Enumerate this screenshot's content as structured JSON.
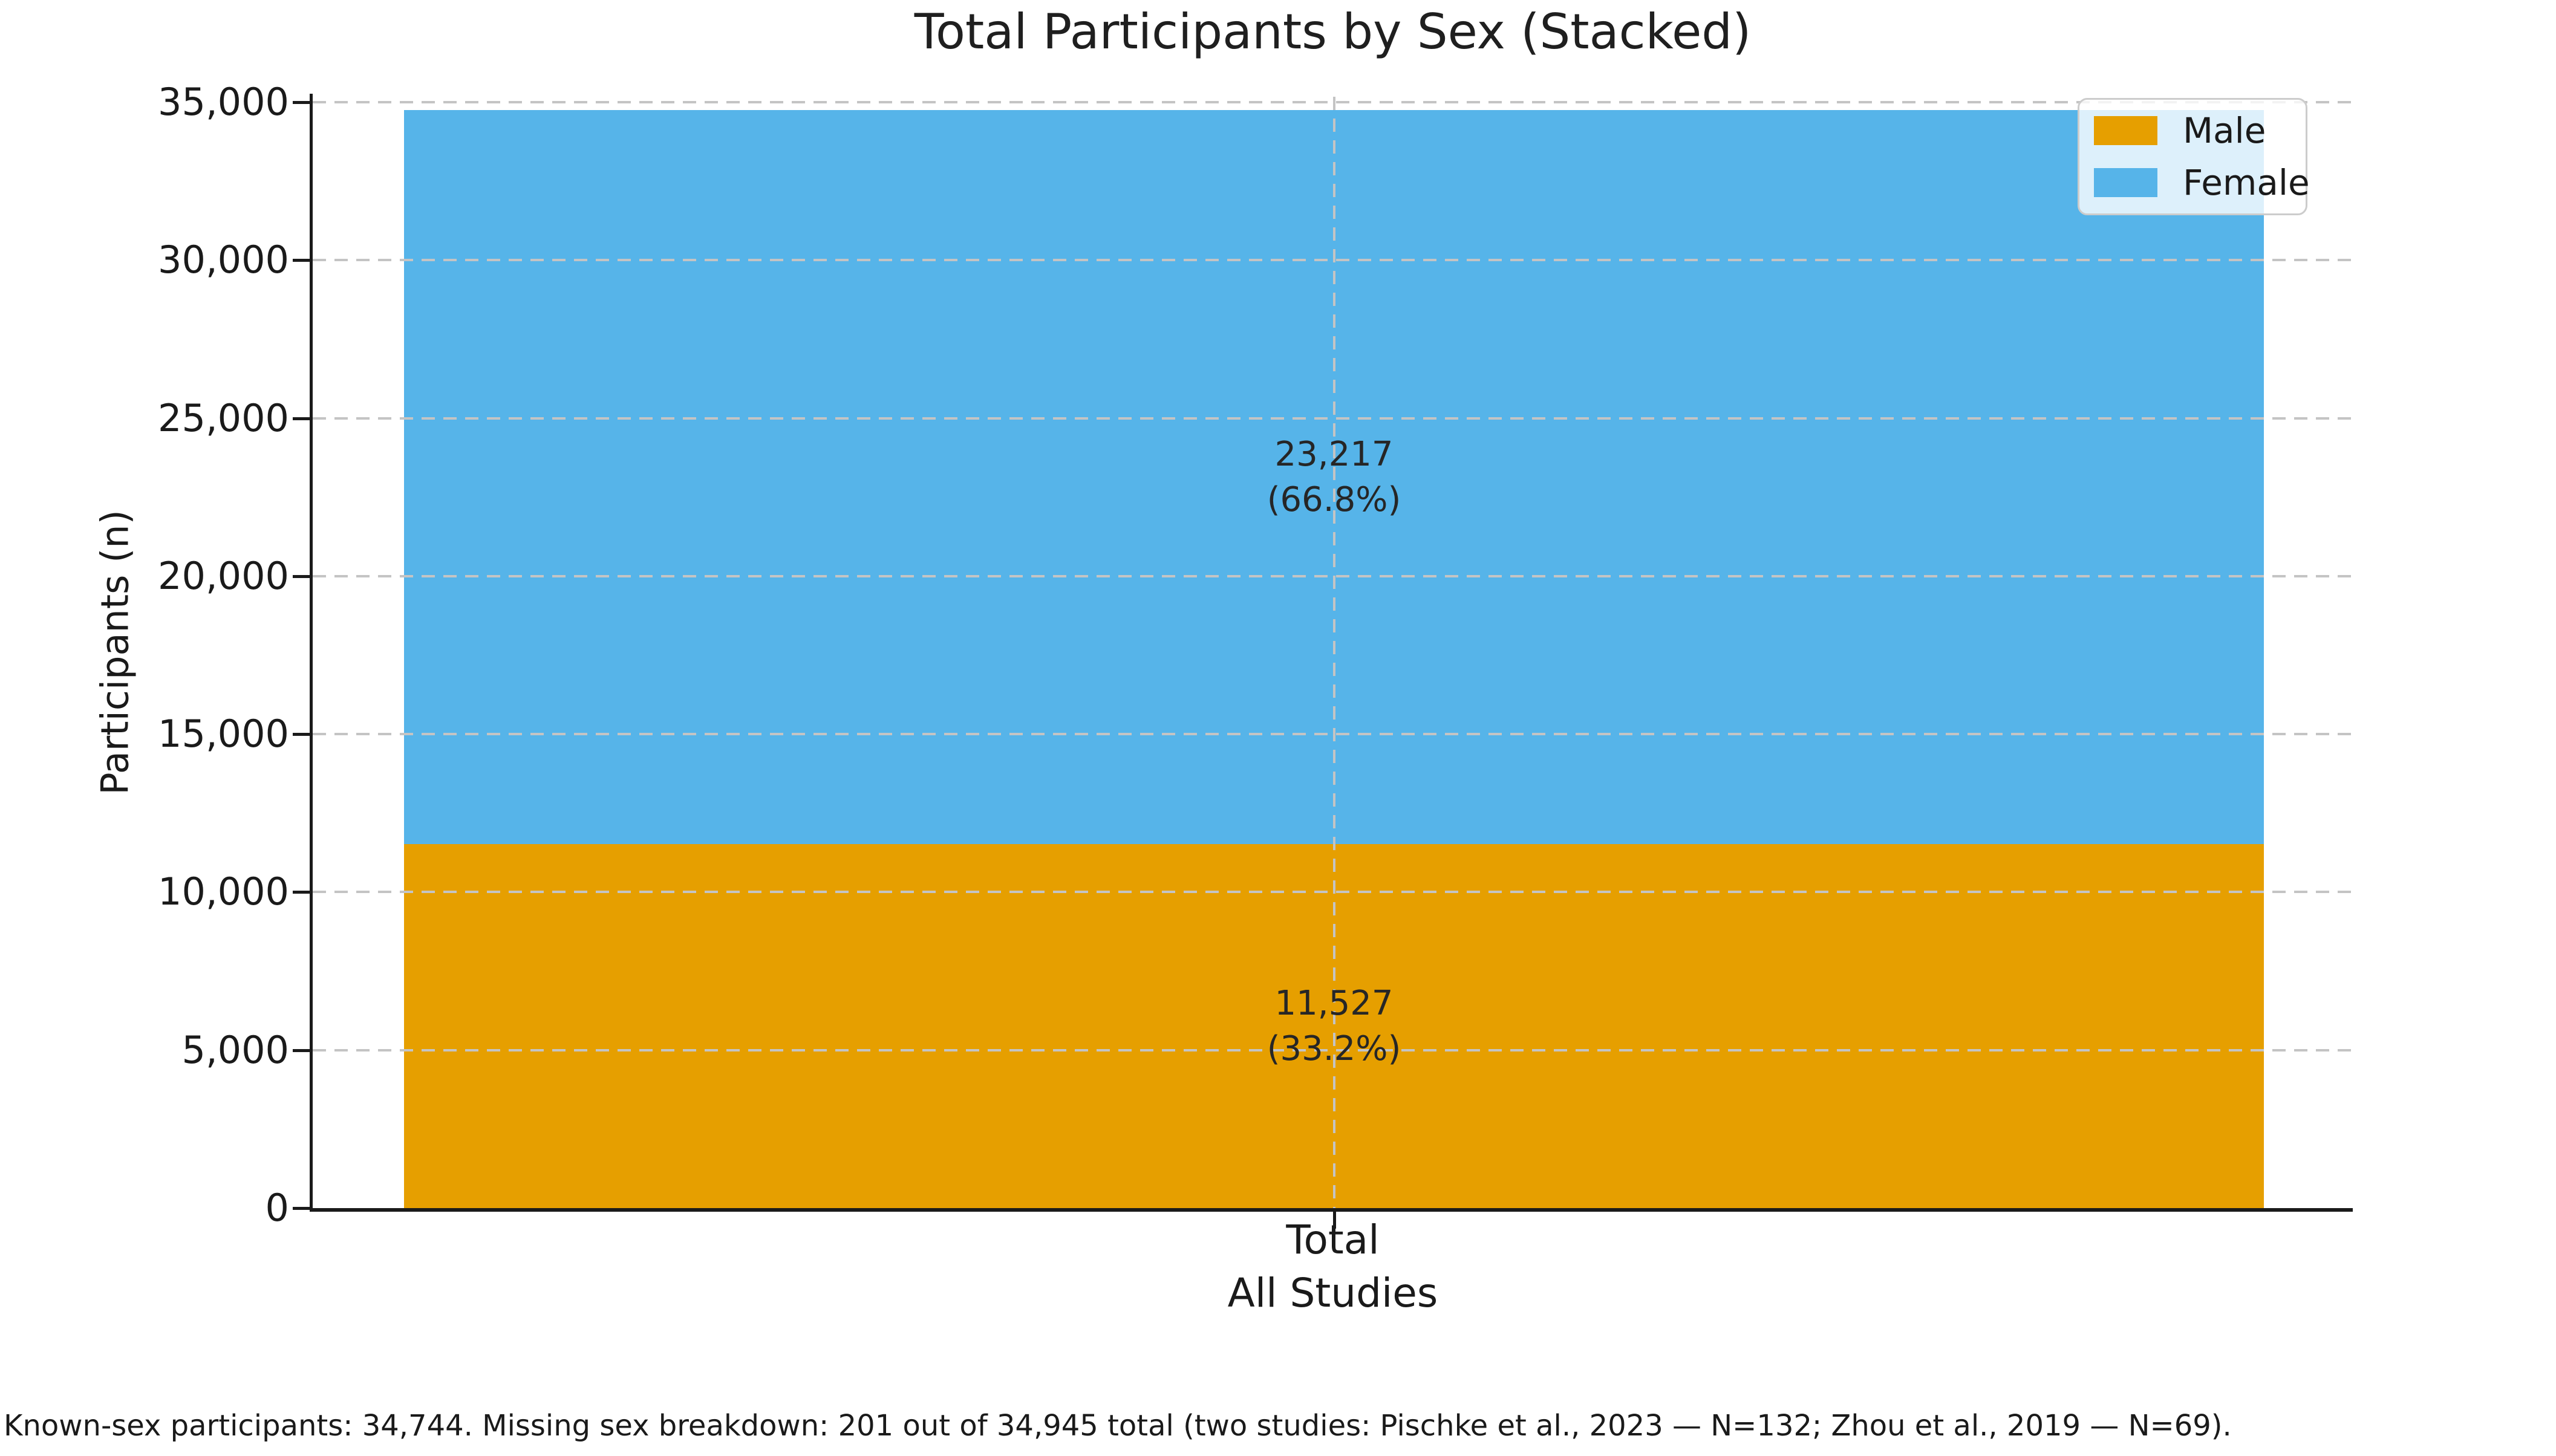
{
  "footnote": "Known-sex participants: 34,744. Missing sex breakdown: 201 out of 34,945 total (two studies: Pischke et al., 2023 — N=132; Zhou et al., 2019 — N=69).",
  "chart_data": {
    "type": "bar",
    "stacked": true,
    "title": "Total Participants by Sex (Stacked)",
    "ylabel": "Participants (n)",
    "xlabel": "All Studies",
    "categories": [
      "Total"
    ],
    "series": [
      {
        "name": "Male",
        "values": [
          11527
        ],
        "color": "#E69F00",
        "value_label": "11,527",
        "pct_label": "(33.2%)"
      },
      {
        "name": "Female",
        "values": [
          23217
        ],
        "color": "#56B4E9",
        "value_label": "23,217",
        "pct_label": "(66.8%)"
      }
    ],
    "stack_total": 34744,
    "ylim": [
      0,
      35000
    ],
    "yticks": [
      0,
      5000,
      10000,
      15000,
      20000,
      25000,
      30000,
      35000
    ],
    "ytick_labels": [
      "0",
      "5,000",
      "10,000",
      "15,000",
      "20,000",
      "25,000",
      "30,000",
      "35,000"
    ],
    "grid": "dashed, gray, horizontal at each ytick plus vertical at bar center, drawn over bars",
    "legend_position": "upper right",
    "legend_entries": [
      "Male",
      "Female"
    ],
    "text_color": "#1a1a1a",
    "grid_color": "#c4c4c4"
  }
}
